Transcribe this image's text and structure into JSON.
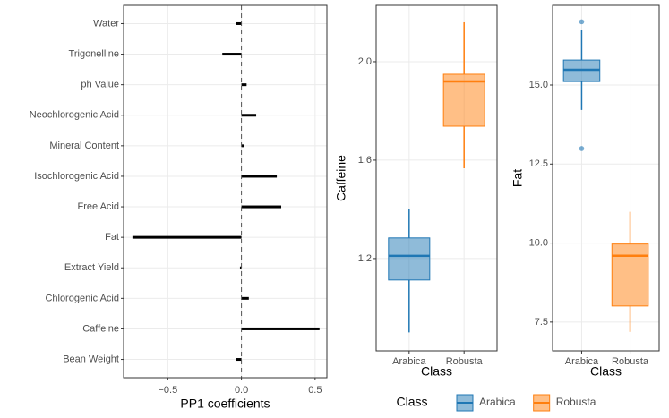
{
  "chart_data": [
    {
      "type": "hbar",
      "x_label": "PP1 coefficients",
      "categories": [
        "Water",
        "Trigonelline",
        "ph Value",
        "Neochlorogenic Acid",
        "Mineral Content",
        "Isochlorogenic Acid",
        "Free Acid",
        "Fat",
        "Extract Yield",
        "Chlorogenic Acid",
        "Caffeine",
        "Bean Weight"
      ],
      "values": [
        -0.04,
        -0.13,
        0.035,
        0.1,
        0.02,
        0.24,
        0.27,
        -0.74,
        -0.01,
        0.05,
        0.53,
        -0.04
      ],
      "color": "#000000",
      "xlim": [
        -0.8,
        0.58
      ],
      "xticks": [
        {
          "value": -0.5,
          "label": "−0.5"
        },
        {
          "value": 0,
          "label": "0.0"
        },
        {
          "value": 0.5,
          "label": "0.5"
        }
      ],
      "vline": 0,
      "grid": true
    },
    {
      "type": "box",
      "x_label": "Class",
      "y_label": "Caffeine",
      "categories": [
        "Arabica",
        "Robusta"
      ],
      "series": [
        {
          "name": "Arabica",
          "color": "#1f77b4",
          "min": 0.9,
          "q1": 1.113,
          "median": 1.211,
          "q3": 1.284,
          "max": 1.4,
          "outliers": []
        },
        {
          "name": "Robusta",
          "color": "#ff7f0e",
          "min": 1.567,
          "q1": 1.738,
          "median": 1.92,
          "q3": 1.949,
          "max": 2.16,
          "outliers": []
        }
      ],
      "ylim": [
        0.825,
        2.229
      ],
      "yticks": [
        1.2,
        1.6,
        {
          "value": 2,
          "label": "2.0"
        }
      ],
      "grid": true
    },
    {
      "type": "box",
      "x_label": "Class",
      "y_label": "Fat",
      "categories": [
        "Arabica",
        "Robusta"
      ],
      "series": [
        {
          "name": "Arabica",
          "color": "#1f77b4",
          "min": 14.21,
          "q1": 15.11,
          "median": 15.48,
          "q3": 15.79,
          "max": 16.75,
          "outliers": [
            17.0,
            12.99
          ]
        },
        {
          "name": "Robusta",
          "color": "#ff7f0e",
          "min": 7.19,
          "q1": 8.01,
          "median": 9.6,
          "q3": 9.97,
          "max": 10.99,
          "outliers": []
        }
      ],
      "ylim": [
        6.59,
        17.52
      ],
      "yticks": [
        7.5,
        {
          "value": 10,
          "label": "10.0"
        },
        12.5,
        {
          "value": 15,
          "label": "15.0"
        }
      ],
      "grid": true
    }
  ],
  "legend": {
    "title": "Class"
  }
}
